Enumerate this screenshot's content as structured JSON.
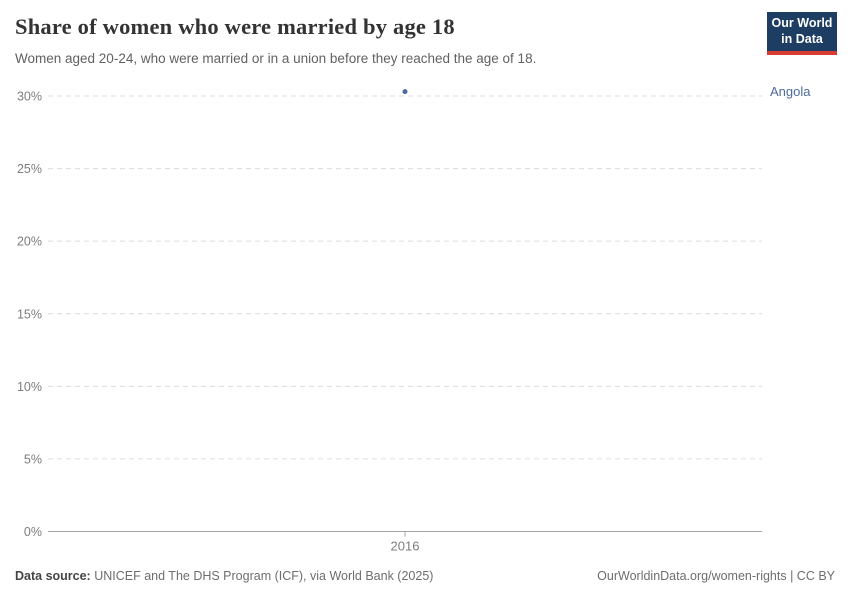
{
  "header": {
    "title": "Share of women who were married by age 18",
    "subtitle": "Women aged 20-24, who were married or in a union before they reached the age of 18."
  },
  "logo": {
    "line1": "Our World",
    "line2": "in Data",
    "bg_color": "#1d3d63",
    "accent_color": "#d73c32"
  },
  "chart_data": {
    "type": "scatter",
    "title": "Share of women who were married by age 18",
    "subtitle": "Women aged 20-24, who were married or in a union before they reached the age of 18.",
    "series": [
      {
        "name": "Angola",
        "color": "#4c6a9c",
        "points": [
          {
            "x": 2016,
            "y": 30.3
          }
        ]
      }
    ],
    "entity_label": "Angola",
    "x_ticks": [
      2016
    ],
    "y_ticks": [
      0,
      5,
      10,
      15,
      20,
      25,
      30
    ],
    "y_tick_suffix": "%",
    "ylim": [
      0,
      30
    ],
    "grid": true,
    "legend_position": "right-of-plot"
  },
  "footer": {
    "source_label": "Data source:",
    "source_text": " UNICEF and The DHS Program (ICF), via World Bank (2025)",
    "rights": "OurWorldinData.org/women-rights | CC BY"
  }
}
